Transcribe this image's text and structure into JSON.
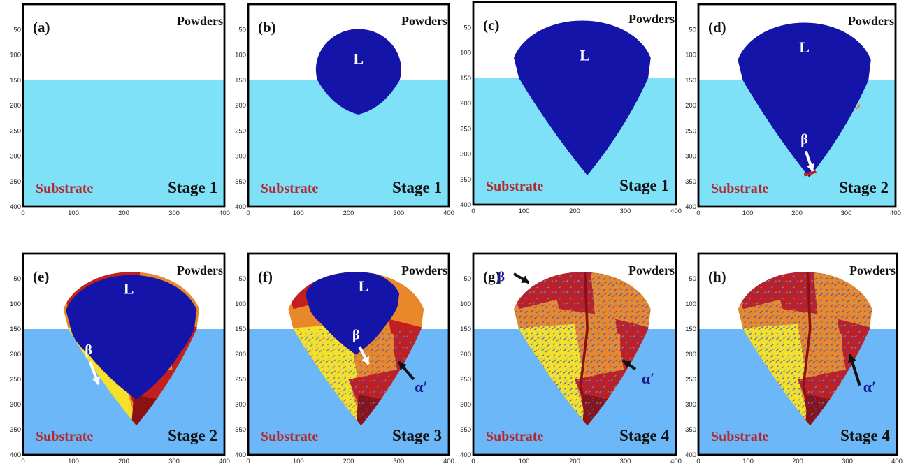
{
  "colors": {
    "substrate_light": "#7fe1f8",
    "substrate_dark": "#6cb7f7",
    "liquid": "#1414a8",
    "axis": "#000000",
    "beta_yellow": "#f5e12a",
    "orange": "#e8882a",
    "red": "#c41f1f",
    "dark_red": "#8a1212",
    "substrate_text": "#b02a30",
    "alpha_text": "#1a1a8c"
  },
  "axes": {
    "ticks": [
      "50",
      "100",
      "150",
      "200",
      "250",
      "300",
      "350",
      "400"
    ],
    "x_ticks": [
      "0",
      "100",
      "200",
      "300",
      "400"
    ]
  },
  "panels": [
    {
      "id": "a",
      "letter": "(a)",
      "powders": "Powders",
      "substrate": "Substrate",
      "stage": "Stage 1",
      "pool": "none",
      "L": "",
      "beta": "",
      "alpha": ""
    },
    {
      "id": "b",
      "letter": "(b)",
      "powders": "Powders",
      "substrate": "Substrate",
      "stage": "Stage 1",
      "pool": "small",
      "L": "L",
      "beta": "",
      "alpha": ""
    },
    {
      "id": "c",
      "letter": "(c)",
      "powders": "Powders",
      "substrate": "Substrate",
      "stage": "Stage 1",
      "pool": "full",
      "L": "L",
      "beta": "",
      "alpha": ""
    },
    {
      "id": "d",
      "letter": "(d)",
      "powders": "Powders",
      "substrate": "Substrate",
      "stage": "Stage 2",
      "pool": "full",
      "L": "L",
      "beta": "β",
      "alpha": ""
    },
    {
      "id": "e",
      "letter": "(e)",
      "powders": "Powders",
      "substrate": "Substrate",
      "stage": "Stage 2",
      "pool": "grains",
      "L": "L",
      "beta": "β",
      "alpha": ""
    },
    {
      "id": "f",
      "letter": "(f)",
      "powders": "Powders",
      "substrate": "Substrate",
      "stage": "Stage 3",
      "pool": "grains",
      "L": "L",
      "beta": "β",
      "alpha": "α′"
    },
    {
      "id": "g",
      "letter": "(g)",
      "powders": "Powders",
      "substrate": "Substrate",
      "stage": "Stage 4",
      "pool": "solid",
      "L": "",
      "beta": "β",
      "alpha": "α′"
    },
    {
      "id": "h",
      "letter": "(h)",
      "powders": "Powders",
      "substrate": "Substrate",
      "stage": "Stage 4",
      "pool": "solid",
      "L": "",
      "beta": "",
      "alpha": "α′"
    }
  ]
}
